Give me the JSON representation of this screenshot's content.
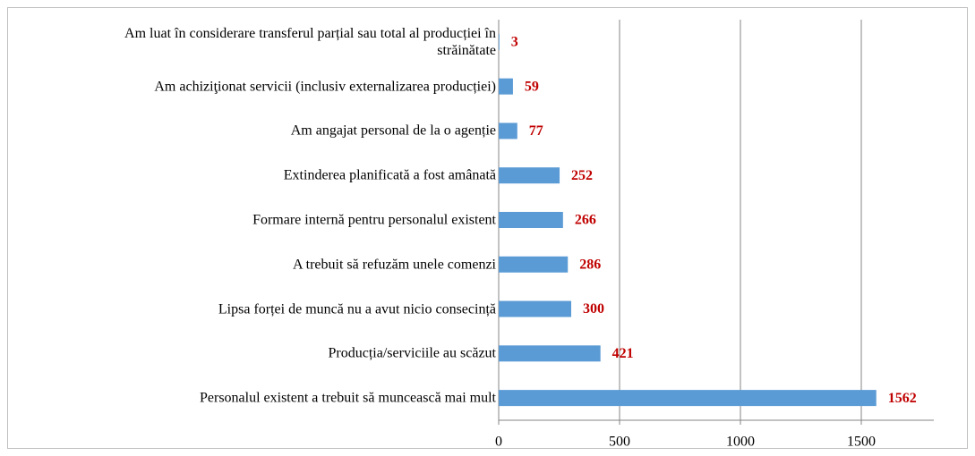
{
  "chart_data": {
    "type": "bar",
    "orientation": "horizontal",
    "categories": [
      "Am luat în considerare transferul parțial sau total al producției în străinătate",
      "Am achiziţionat servicii (inclusiv externalizarea producției)",
      "Am angajat personal de la o agenție",
      "Extinderea planificată a fost amânată",
      "Formare internă pentru personalul existent",
      "A trebuit să refuzăm unele comenzi",
      "Lipsa forței de muncă nu a avut nicio consecință",
      "Producția/serviciile au scăzut",
      "Personalul existent a trebuit să muncească mai mult"
    ],
    "values": [
      3,
      59,
      77,
      252,
      266,
      286,
      300,
      421,
      1562
    ],
    "color": "#5b9bd5",
    "label_color": "#c00000",
    "xlim": [
      0,
      1800
    ],
    "xticks": [
      0,
      500,
      1000,
      1500
    ],
    "grid": true
  }
}
